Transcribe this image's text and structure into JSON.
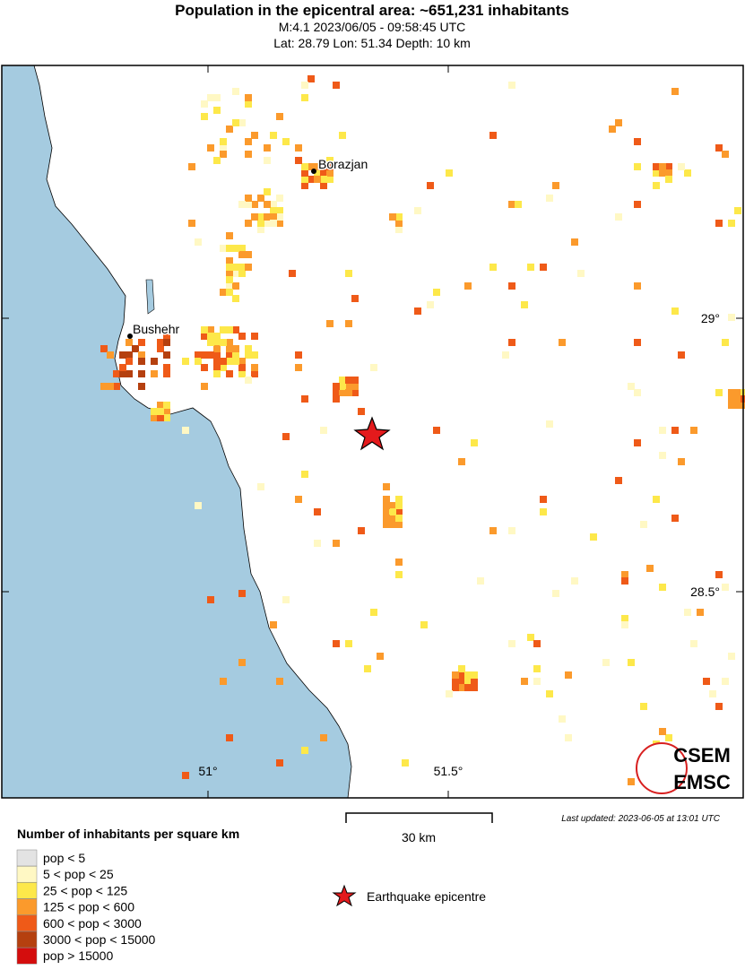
{
  "header": {
    "title": "Population in the epicentral area: ~651,231 inhabitants",
    "line1": "M:4.1 2023/06/05 - 09:58:45 UTC",
    "line2": "Lat: 28.79 Lon: 51.34 Depth: 10 km"
  },
  "map": {
    "places": [
      "Borazjan",
      "Bushehr"
    ],
    "lat_labels": [
      "29°",
      "28.5°"
    ],
    "lon_labels": [
      "51°",
      "51.5°"
    ],
    "scale": "30 km",
    "last_updated": "Last updated: 2023-06-05 at 13:01 UTC",
    "logo": [
      "CSEM",
      "EMSC"
    ]
  },
  "legend": {
    "title": "Number of inhabitants per square km",
    "items": [
      "pop < 5",
      "5 < pop < 25",
      "25 < pop < 125",
      "125 < pop < 600",
      "600 < pop < 3000",
      "3000 < pop < 15000",
      "pop > 15000"
    ],
    "epicentre": "Earthquake epicentre"
  }
}
